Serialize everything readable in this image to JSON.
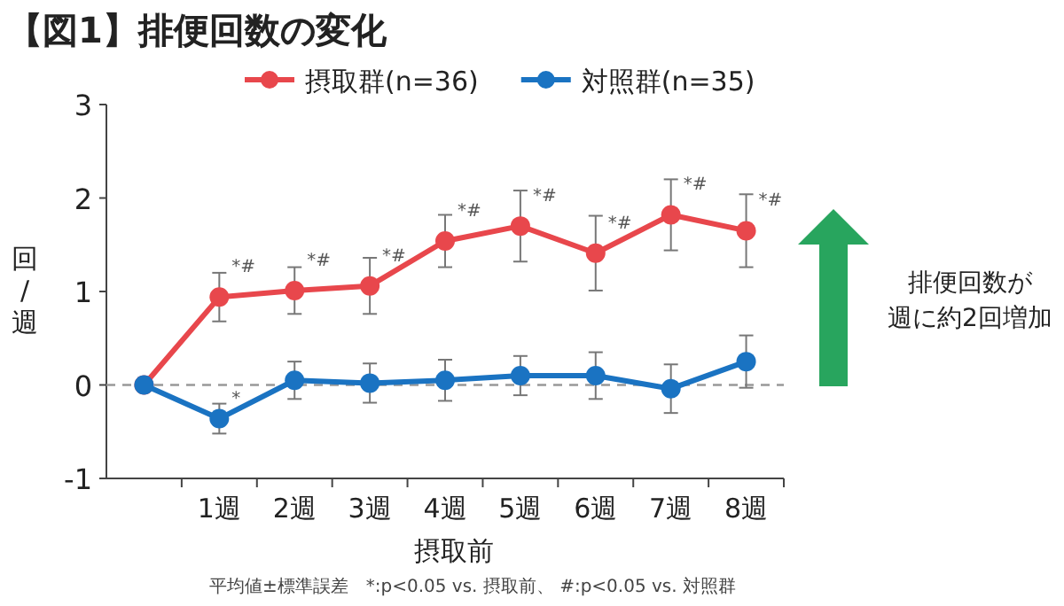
{
  "chart_data": {
    "type": "line",
    "title": "【図1】排便回数の変化",
    "xlabel": "摂取前",
    "ylabel": "回/週",
    "categories": [
      null,
      "1週",
      "2週",
      "3週",
      "4週",
      "5週",
      "6週",
      "7週",
      "8週"
    ],
    "series": [
      {
        "name": "摂取群(n=36)",
        "color": "#e8474c",
        "values": [
          0,
          0.94,
          1.01,
          1.06,
          1.54,
          1.7,
          1.41,
          1.82,
          1.65
        ],
        "errors": [
          null,
          0.26,
          0.25,
          0.3,
          0.28,
          0.38,
          0.4,
          0.38,
          0.39
        ]
      },
      {
        "name": "対照群(n=35)",
        "color": "#1a73c2",
        "values": [
          0,
          -0.36,
          0.05,
          0.02,
          0.05,
          0.1,
          0.1,
          -0.04,
          0.25
        ],
        "errors": [
          null,
          0.16,
          0.2,
          0.21,
          0.22,
          0.21,
          0.25,
          0.26,
          0.28
        ]
      }
    ],
    "ylim": [
      -1,
      3
    ],
    "yticks": [
      -1,
      0,
      1,
      2,
      3
    ],
    "ref_lines": [
      {
        "axis": "y",
        "value": 0,
        "color": "#999999",
        "line_style": "dashed"
      }
    ],
    "annotations": [
      {
        "text": "*#",
        "x": "1週",
        "y": 0.94
      },
      {
        "text": "*#",
        "x": "2週",
        "y": 1.01
      },
      {
        "text": "*#",
        "x": "3週",
        "y": 1.06
      },
      {
        "text": "*#",
        "x": "4週",
        "y": 1.54
      },
      {
        "text": "*#",
        "x": "5週",
        "y": 1.7
      },
      {
        "text": "*#",
        "x": "6週",
        "y": 1.41
      },
      {
        "text": "*#",
        "x": "7週",
        "y": 1.82
      },
      {
        "text": "*#",
        "x": "8週",
        "y": 1.65
      },
      {
        "text": "*",
        "x": "1週",
        "y": -0.36
      },
      "排便回数が",
      "週に約2回増加",
      "平均値±標準誤差　*:p<0.05 vs. 摂取前、 #:p<0.05 vs. 対照群"
    ],
    "legend": "top",
    "marker": "circle",
    "line_style": "solid",
    "grid": false
  }
}
